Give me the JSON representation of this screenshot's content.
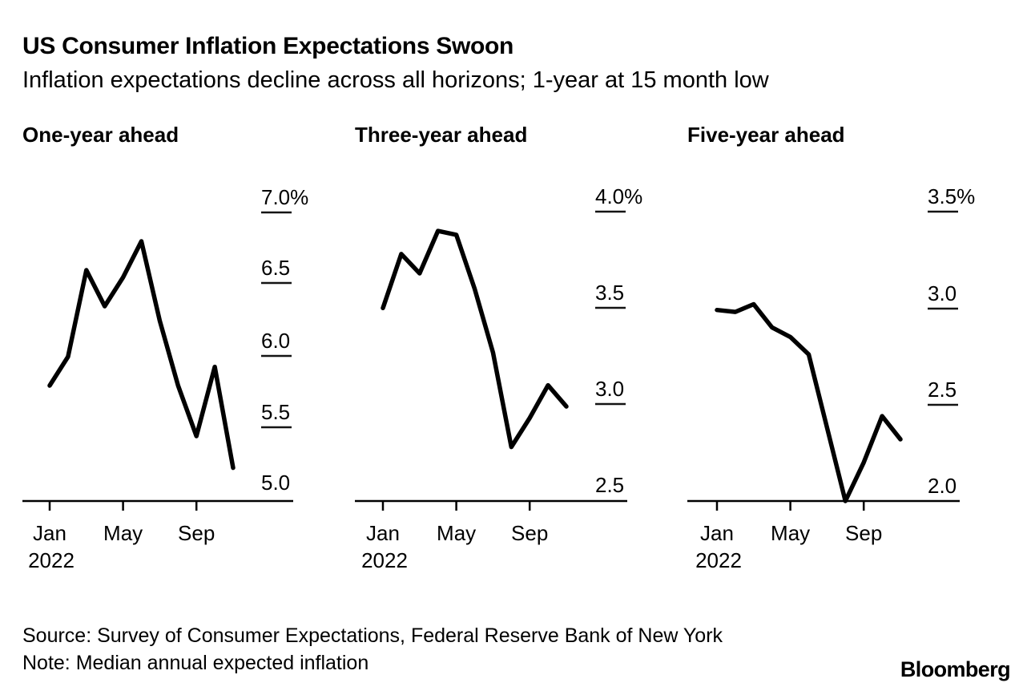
{
  "header": {
    "title": "US Consumer Inflation Expectations Swoon",
    "subtitle": "Inflation expectations decline across all horizons; 1-year at 15 month low"
  },
  "colors": {
    "line": "#000000",
    "axis": "#000000",
    "tick_dash": "#141414",
    "text": "#000000",
    "background": "#ffffff"
  },
  "chart_data": [
    {
      "type": "line",
      "title": "One-year ahead",
      "x": [
        "Jan",
        "Feb",
        "Mar",
        "Apr",
        "May",
        "Jun",
        "Jul",
        "Aug",
        "Sep",
        "Oct",
        "Nov"
      ],
      "year": "2022",
      "values": [
        5.8,
        6.0,
        6.6,
        6.35,
        6.55,
        6.8,
        6.25,
        5.8,
        5.45,
        5.93,
        5.23
      ],
      "unit": "%",
      "ylim": [
        5.0,
        7.0
      ],
      "yticks": [
        7.0,
        6.5,
        6.0,
        5.5,
        5.0
      ],
      "ytick_labels": [
        "7.0%",
        "6.5",
        "6.0",
        "5.5",
        "5.0"
      ],
      "xtick_labels": [
        "Jan",
        "May",
        "Sep"
      ],
      "year_label": "2022",
      "grid": "off",
      "legend": "none"
    },
    {
      "type": "line",
      "title": "Three-year ahead",
      "x": [
        "Jan",
        "Feb",
        "Mar",
        "Apr",
        "May",
        "Jun",
        "Jul",
        "Aug",
        "Sep",
        "Oct",
        "Nov"
      ],
      "year": "2022",
      "values": [
        3.5,
        3.78,
        3.68,
        3.9,
        3.88,
        3.6,
        3.27,
        2.78,
        2.93,
        3.1,
        2.99
      ],
      "unit": "%",
      "ylim": [
        2.5,
        4.0
      ],
      "yticks": [
        4.0,
        3.5,
        3.0,
        2.5
      ],
      "ytick_labels": [
        "4.0%",
        "3.5",
        "3.0",
        "2.5"
      ],
      "xtick_labels": [
        "Jan",
        "May",
        "Sep"
      ],
      "year_label": "2022",
      "grid": "off",
      "legend": "none"
    },
    {
      "type": "line",
      "title": "Five-year ahead",
      "x": [
        "Jan",
        "Feb",
        "Mar",
        "Apr",
        "May",
        "Jun",
        "Jul",
        "Aug",
        "Sep",
        "Oct",
        "Nov"
      ],
      "year": "2022",
      "values": [
        2.99,
        2.98,
        3.02,
        2.9,
        2.85,
        2.76,
        2.38,
        2.0,
        2.2,
        2.44,
        2.32
      ],
      "unit": "%",
      "ylim": [
        2.0,
        3.5
      ],
      "yticks": [
        3.5,
        3.0,
        2.5,
        2.0
      ],
      "ytick_labels": [
        "3.5%",
        "3.0",
        "2.5",
        "2.0"
      ],
      "xtick_labels": [
        "Jan",
        "May",
        "Sep"
      ],
      "year_label": "2022",
      "grid": "off",
      "legend": "none"
    }
  ],
  "footer": {
    "source": "Source: Survey of Consumer Expectations, Federal Reserve Bank of New York",
    "note": "Note: Median annual expected inflation",
    "logo": "Bloomberg"
  }
}
